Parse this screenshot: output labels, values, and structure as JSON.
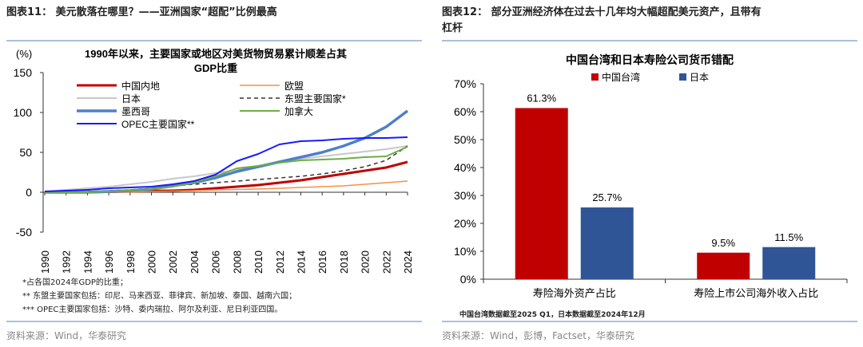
{
  "left": {
    "figure_title": "图表11： 美元散落在哪里？——亚洲国家“超配”比例最高",
    "notes": [
      "*占各国2024年GDP的比重；",
      "** 东盟主要国家包括：印尼、马来西亚、菲律宾、新加坡、泰国、越南六国；",
      "*** OPEC主要国家包括：沙特、委内瑞拉、阿尔及利亚、尼日利亚四国。"
    ],
    "source": "资料来源：Wind，华泰研究"
  },
  "right": {
    "figure_title_line1": "图表12： 部分亚洲经济体在过去十几年均大幅超配美元资产，且带有",
    "figure_title_line2": "杠杆",
    "note": "中国台湾数据截至2025 Q1，日本数据截至2024年12月",
    "source": "资料来源：Wind，彭博，Factset，华泰研究"
  },
  "chart_data": [
    {
      "type": "line",
      "title": "1990年以来，主要国家或地区对美货物贸易累计顺差占其GDP比重",
      "ylabel": "(%)",
      "ylim": [
        -50,
        150
      ],
      "yticks": [
        -50,
        0,
        50,
        100,
        150
      ],
      "x": [
        1990,
        1992,
        1994,
        1996,
        1998,
        2000,
        2002,
        2004,
        2006,
        2008,
        2010,
        2012,
        2014,
        2016,
        2018,
        2020,
        2022,
        2024
      ],
      "legend": "top-left",
      "grid": false,
      "series": [
        {
          "name": "中国内地",
          "color": "#c00000",
          "width": 3,
          "values": [
            0,
            0,
            0,
            0.5,
            1,
            1.5,
            2,
            3,
            5,
            7,
            9,
            12,
            15,
            19,
            23,
            27,
            31,
            38
          ]
        },
        {
          "name": "欧盟",
          "color": "#f4914a",
          "width": 1.5,
          "values": [
            0,
            0,
            0,
            0,
            0.5,
            1,
            1.5,
            2,
            3,
            3.5,
            4,
            5,
            6,
            7,
            8,
            10,
            12,
            14
          ]
        },
        {
          "name": "日本",
          "color": "#c8c8c8",
          "width": 2,
          "values": [
            1,
            3,
            5,
            7,
            10,
            13,
            17,
            20,
            24,
            28,
            33,
            38,
            42,
            45,
            48,
            51,
            54,
            58
          ]
        },
        {
          "name": "东盟主要国家*",
          "color": "#333333",
          "width": 1.5,
          "dash": "5,4",
          "values": [
            0,
            0,
            1,
            2,
            3,
            5,
            8,
            10,
            12,
            14,
            16,
            18,
            20,
            23,
            27,
            32,
            40,
            58
          ]
        },
        {
          "name": "墨西哥",
          "color": "#4f7fc8",
          "width": 3.5,
          "values": [
            0,
            0,
            0,
            1,
            2,
            4,
            8,
            12,
            18,
            26,
            32,
            38,
            44,
            50,
            58,
            68,
            82,
            102
          ]
        },
        {
          "name": "加拿大",
          "color": "#6aaf44",
          "width": 2,
          "values": [
            0,
            0,
            0,
            1,
            2,
            4,
            7,
            12,
            20,
            30,
            33,
            37,
            40,
            41,
            42,
            44,
            45,
            57
          ]
        },
        {
          "name": "OPEC主要国家**",
          "color": "#1a1aff",
          "width": 2,
          "values": [
            1,
            2,
            3,
            5,
            6,
            7,
            10,
            14,
            22,
            39,
            48,
            60,
            64,
            65,
            67,
            68,
            68,
            69
          ]
        }
      ]
    },
    {
      "type": "bar",
      "title": "中国台湾和日本寿险公司货币错配",
      "categories": [
        "寿险海外资产占比",
        "寿险上市公司海外收入占比"
      ],
      "ylim": [
        0,
        70
      ],
      "yticks": [
        "0%",
        "10%",
        "20%",
        "30%",
        "40%",
        "50%",
        "60%",
        "70%"
      ],
      "legend": "top-left",
      "grid": false,
      "series": [
        {
          "name": "中国台湾",
          "color": "#c00000",
          "values": [
            61.3,
            9.5
          ],
          "labels": [
            "61.3%",
            "9.5%"
          ]
        },
        {
          "name": "日本",
          "color": "#2f5597",
          "values": [
            25.7,
            11.5
          ],
          "labels": [
            "25.7%",
            "11.5%"
          ]
        }
      ]
    }
  ]
}
